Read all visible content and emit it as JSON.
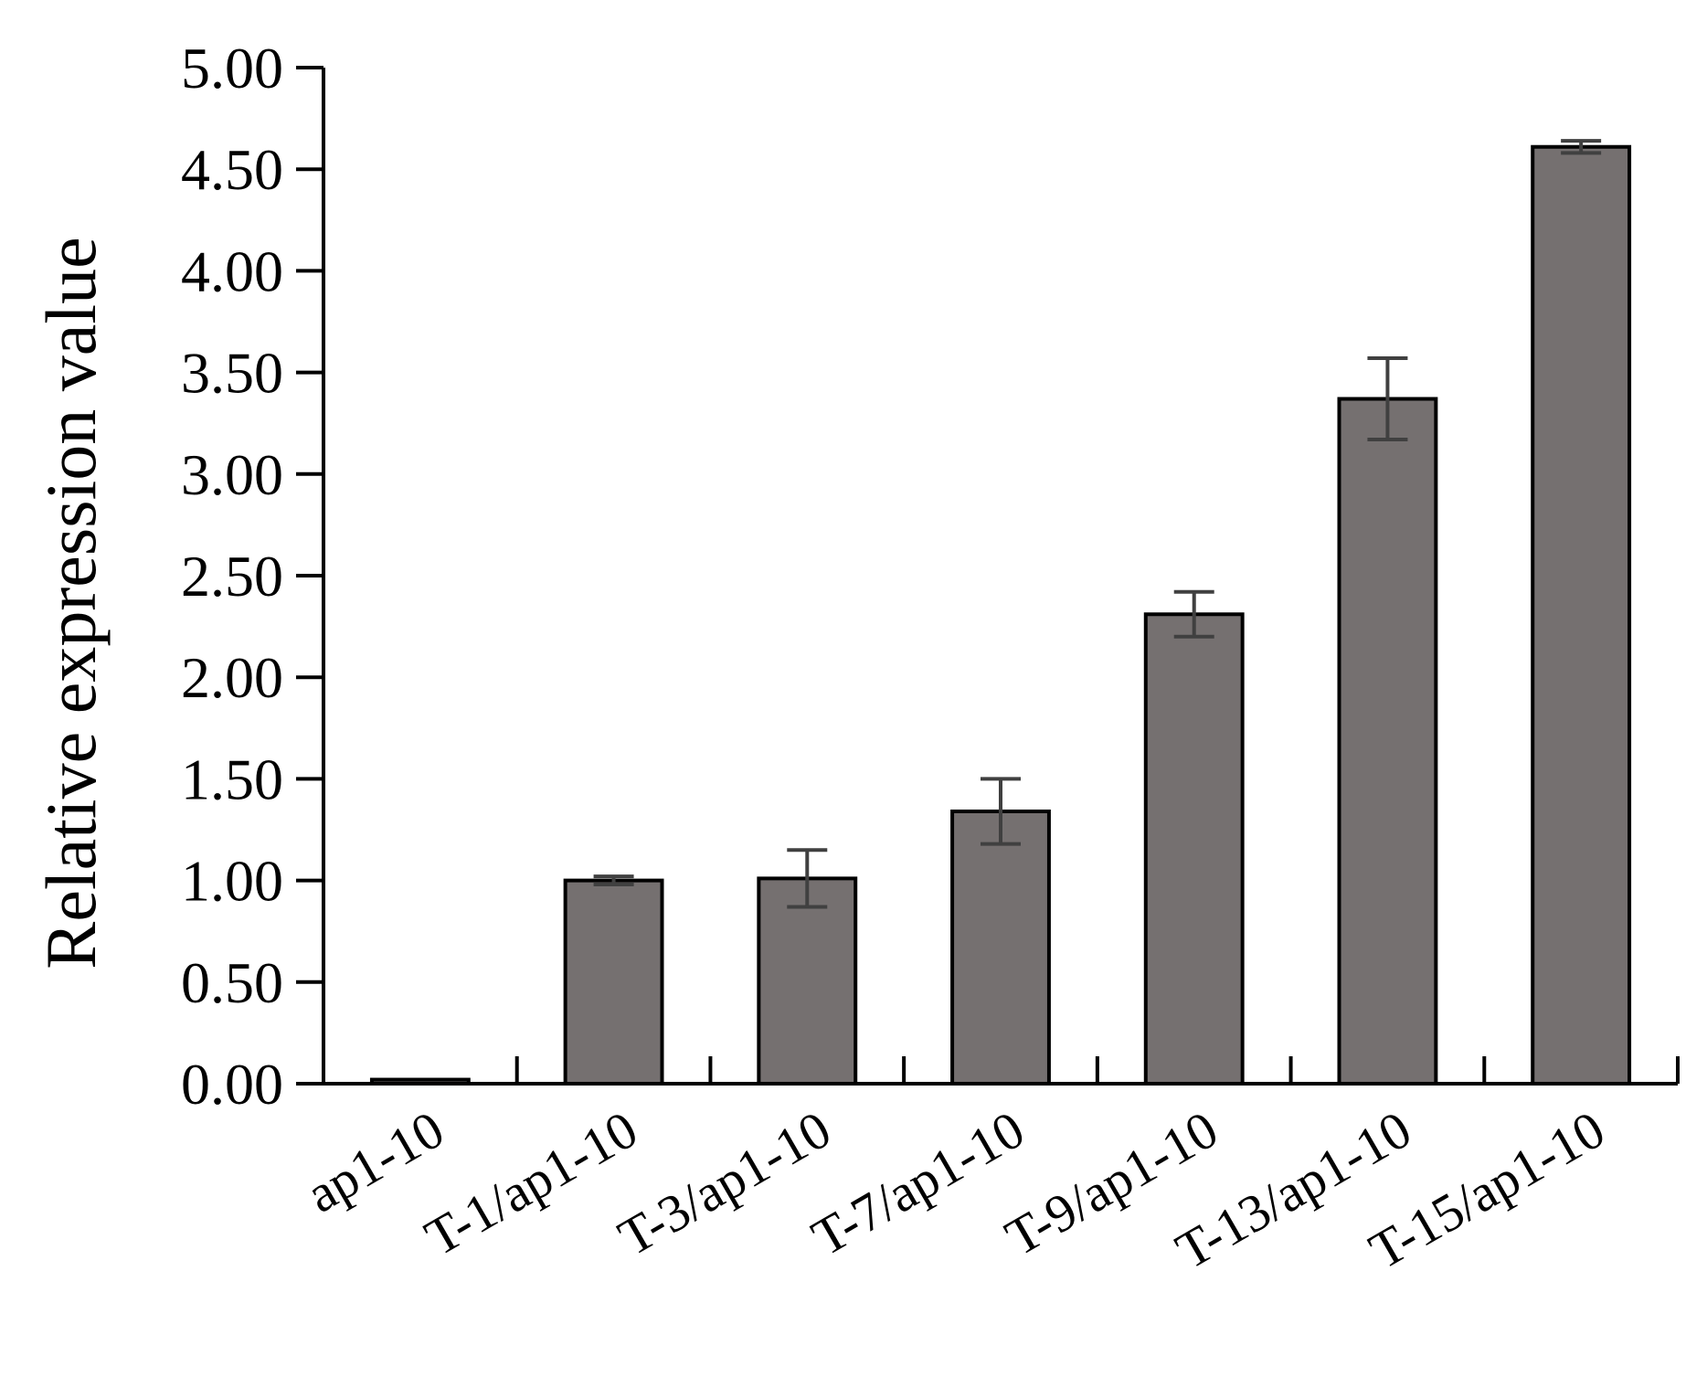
{
  "chart_data": {
    "type": "bar",
    "title": "",
    "xlabel": "",
    "ylabel": "Relative expression value",
    "ylim": [
      0,
      5
    ],
    "yticks": [
      "0.00",
      "0.50",
      "1.00",
      "1.50",
      "2.00",
      "2.50",
      "3.00",
      "3.50",
      "4.00",
      "4.50",
      "5.00"
    ],
    "categories": [
      "ap1-10",
      "T-1/ap1-10",
      "T-3/ap1-10",
      "T-7/ap1-10",
      "T-9/ap1-10",
      "T-13/ap1-10",
      "T-15/ap1-10"
    ],
    "values": [
      0.02,
      1.0,
      1.01,
      1.34,
      2.31,
      3.37,
      4.61
    ],
    "errors": [
      0.0,
      0.02,
      0.14,
      0.16,
      0.11,
      0.2,
      0.03
    ],
    "grid": false,
    "bar_color": "#757070",
    "bar_edge_color": "#000000",
    "error_bar_color": "#404040"
  }
}
